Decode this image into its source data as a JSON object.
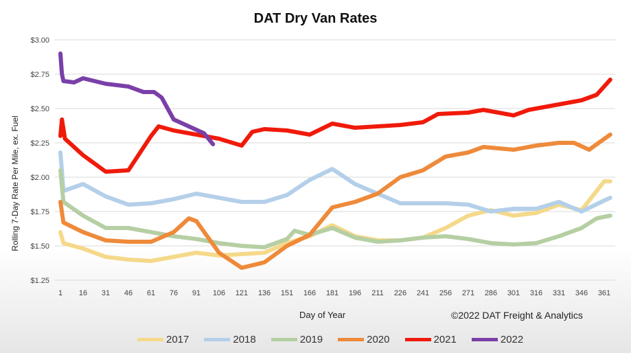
{
  "chart_data": {
    "type": "line",
    "title": "DAT Dry Van Rates",
    "xlabel": "Day of Year",
    "ylabel": "Rolling 7-Day Rate Per Mile, ex. Fuel",
    "credit": "©2022 DAT Freight & Analytics",
    "xlim": [
      1,
      365
    ],
    "ylim": [
      1.25,
      3.0
    ],
    "x_ticks": [
      "1",
      "16",
      "31",
      "46",
      "61",
      "76",
      "91",
      "106",
      "121",
      "136",
      "151",
      "166",
      "181",
      "196",
      "211",
      "226",
      "241",
      "256",
      "271",
      "286",
      "301",
      "316",
      "331",
      "346",
      "361"
    ],
    "y_ticks": [
      "$1.25",
      "$1.50",
      "$1.75",
      "$2.00",
      "$2.25",
      "$2.50",
      "$2.75",
      "$3.00"
    ],
    "grid": "horizontal",
    "legend_position": "bottom",
    "series": [
      {
        "name": "2017",
        "color": "#f5d98a",
        "x": [
          1,
          3,
          16,
          31,
          46,
          61,
          76,
          91,
          106,
          121,
          136,
          151,
          166,
          181,
          196,
          211,
          226,
          241,
          256,
          271,
          286,
          301,
          316,
          331,
          346,
          356,
          361,
          365
        ],
        "y": [
          1.6,
          1.52,
          1.48,
          1.42,
          1.4,
          1.39,
          1.42,
          1.45,
          1.43,
          1.44,
          1.45,
          1.52,
          1.57,
          1.65,
          1.57,
          1.54,
          1.54,
          1.56,
          1.63,
          1.72,
          1.76,
          1.72,
          1.74,
          1.8,
          1.76,
          1.9,
          1.97,
          1.97
        ]
      },
      {
        "name": "2018",
        "color": "#b4cfe9",
        "x": [
          1,
          3,
          16,
          31,
          46,
          61,
          76,
          91,
          106,
          121,
          136,
          151,
          166,
          181,
          196,
          211,
          226,
          241,
          256,
          271,
          286,
          301,
          316,
          331,
          346,
          361,
          365
        ],
        "y": [
          2.18,
          1.9,
          1.95,
          1.86,
          1.8,
          1.81,
          1.84,
          1.88,
          1.85,
          1.82,
          1.82,
          1.87,
          1.98,
          2.06,
          1.95,
          1.88,
          1.81,
          1.81,
          1.81,
          1.8,
          1.75,
          1.77,
          1.77,
          1.82,
          1.75,
          1.83,
          1.85
        ]
      },
      {
        "name": "2019",
        "color": "#b5cfa3",
        "x": [
          1,
          3,
          16,
          31,
          46,
          61,
          76,
          91,
          106,
          121,
          136,
          151,
          156,
          166,
          181,
          196,
          211,
          226,
          241,
          256,
          271,
          286,
          301,
          316,
          331,
          346,
          356,
          365
        ],
        "y": [
          2.05,
          1.82,
          1.72,
          1.63,
          1.63,
          1.6,
          1.57,
          1.55,
          1.52,
          1.5,
          1.49,
          1.55,
          1.61,
          1.58,
          1.63,
          1.56,
          1.53,
          1.54,
          1.56,
          1.57,
          1.55,
          1.52,
          1.51,
          1.52,
          1.57,
          1.63,
          1.7,
          1.72
        ]
      },
      {
        "name": "2020",
        "color": "#ee8a3a",
        "x": [
          1,
          3,
          16,
          31,
          46,
          61,
          76,
          86,
          91,
          106,
          121,
          136,
          151,
          166,
          181,
          196,
          211,
          226,
          241,
          256,
          271,
          281,
          301,
          316,
          331,
          341,
          351,
          365
        ],
        "y": [
          1.82,
          1.67,
          1.6,
          1.54,
          1.53,
          1.53,
          1.6,
          1.7,
          1.68,
          1.45,
          1.34,
          1.38,
          1.5,
          1.58,
          1.78,
          1.82,
          1.88,
          2.0,
          2.05,
          2.15,
          2.18,
          2.22,
          2.2,
          2.23,
          2.25,
          2.25,
          2.2,
          2.31
        ]
      },
      {
        "name": "2021",
        "color": "#f01a0a",
        "x": [
          1,
          2,
          4,
          16,
          31,
          46,
          61,
          66,
          76,
          91,
          106,
          121,
          128,
          136,
          151,
          166,
          181,
          196,
          211,
          226,
          241,
          251,
          271,
          281,
          301,
          311,
          331,
          346,
          356,
          365
        ],
        "y": [
          2.3,
          2.42,
          2.28,
          2.16,
          2.04,
          2.05,
          2.3,
          2.37,
          2.34,
          2.31,
          2.28,
          2.23,
          2.33,
          2.35,
          2.34,
          2.31,
          2.39,
          2.36,
          2.37,
          2.38,
          2.4,
          2.46,
          2.47,
          2.49,
          2.45,
          2.49,
          2.53,
          2.56,
          2.6,
          2.71
        ]
      },
      {
        "name": "2022",
        "color": "#7a3fa8",
        "x": [
          1,
          2,
          3,
          10,
          16,
          31,
          46,
          56,
          63,
          68,
          76,
          86,
          96,
          102
        ],
        "y": [
          2.9,
          2.75,
          2.7,
          2.69,
          2.72,
          2.68,
          2.66,
          2.62,
          2.62,
          2.58,
          2.42,
          2.37,
          2.32,
          2.24
        ]
      }
    ]
  }
}
